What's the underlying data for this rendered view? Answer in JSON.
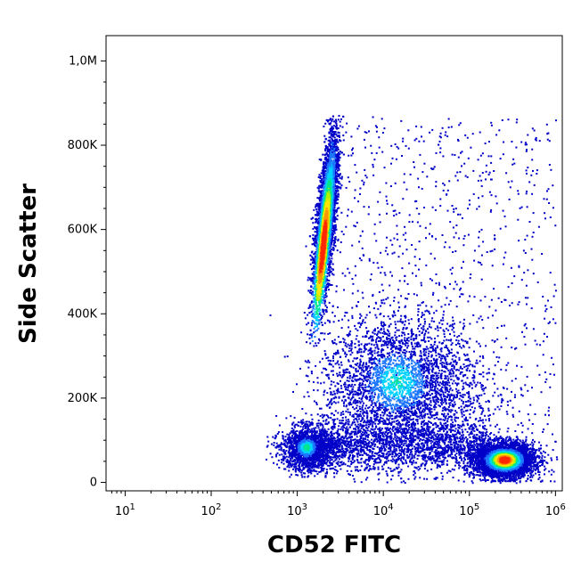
{
  "chart_data": {
    "type": "scatter",
    "title": "",
    "xlabel": "CD52 FITC",
    "ylabel": "Side Scatter",
    "x_scale": "log",
    "xlim": [
      6,
      1200000
    ],
    "ylim": [
      -20000,
      1060000
    ],
    "x_ticks": [
      {
        "value": 10,
        "base": "10",
        "exp": "1"
      },
      {
        "value": 100,
        "base": "10",
        "exp": "2"
      },
      {
        "value": 1000,
        "base": "10",
        "exp": "3"
      },
      {
        "value": 10000,
        "base": "10",
        "exp": "4"
      },
      {
        "value": 100000,
        "base": "10",
        "exp": "5"
      },
      {
        "value": 1000000,
        "base": "10",
        "exp": "6"
      }
    ],
    "y_ticks": [
      {
        "value": 0,
        "label": "0"
      },
      {
        "value": 200000,
        "label": "200K"
      },
      {
        "value": 400000,
        "label": "400K"
      },
      {
        "value": 600000,
        "label": "600K"
      },
      {
        "value": 800000,
        "label": "800K"
      },
      {
        "value": 1000000,
        "label": "1,0M"
      }
    ],
    "grid": false,
    "legend": "none",
    "density_colors": [
      "#0000c8",
      "#1e78ff",
      "#00d2ff",
      "#00e68c",
      "#b4f000",
      "#ffe600",
      "#ff9600",
      "#ff2800"
    ],
    "populations": [
      {
        "name": "cd52_negative_high_ssc",
        "x_log10_mean": 3.32,
        "y_mean": 620000,
        "y_spread": 240000,
        "x_log10_slope_per_100k": 0.047,
        "x_log10_sd": 0.05,
        "density": "high"
      },
      {
        "name": "cd52_positive_low_ssc",
        "x_log10_center": 5.4,
        "y_center": 55000,
        "x_log10_sd": 0.17,
        "y_sd": 20000,
        "density": "very high"
      },
      {
        "name": "intermediate_ssc",
        "x_log10_center": 4.2,
        "y_center": 230000,
        "x_log10_sd": 0.45,
        "y_sd": 80000,
        "density": "medium"
      },
      {
        "name": "low_ssc_low_fitc",
        "x_log10_center": 3.1,
        "y_center": 80000,
        "x_log10_sd": 0.15,
        "y_sd": 25000,
        "density": "medium"
      },
      {
        "name": "sparse_background",
        "x_log10_range": [
          3.3,
          6.0
        ],
        "y_range": [
          0,
          870000
        ],
        "density": "low"
      }
    ]
  }
}
